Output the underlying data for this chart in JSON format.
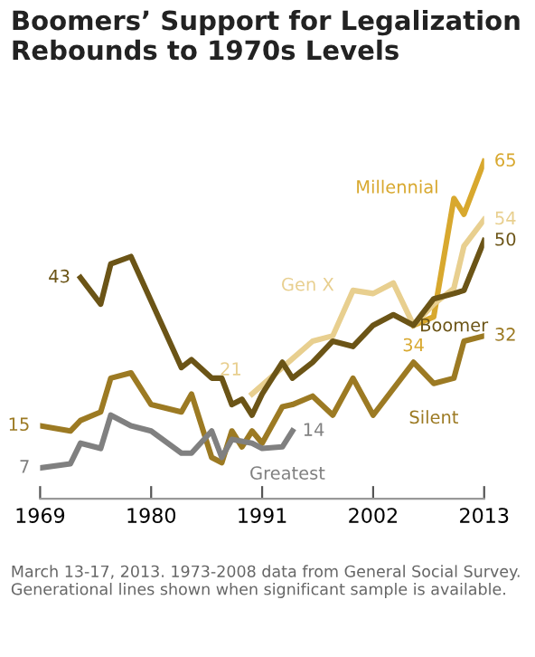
{
  "chart_data": {
    "type": "line",
    "title": "Boomers’ Support for Legalization\nRebounds to 1970s Levels",
    "xlim": [
      1969,
      2013
    ],
    "xticks": [
      1969,
      1980,
      1991,
      2002,
      2013
    ],
    "tick_labels": "x",
    "grid": false,
    "legend": false,
    "marker": "none",
    "line_style": "solid",
    "series": [
      {
        "name": "Millennial",
        "color": "#d8a82e",
        "x": [
          2006,
          2008,
          2010,
          2011,
          2013
        ],
        "values": [
          34,
          35.6,
          58,
          55,
          65
        ],
        "value_labels": [
          "34",
          null,
          null,
          null,
          "65"
        ]
      },
      {
        "name": "Gen X",
        "color": "#e8cf8f",
        "x": [
          1990,
          1993,
          1996,
          1998,
          2000,
          2002,
          2004,
          2006,
          2008,
          2010,
          2011,
          2013
        ],
        "values": [
          21,
          26,
          31,
          32,
          40.6,
          40,
          42,
          34,
          38,
          41,
          49,
          54
        ],
        "value_labels": [
          "21",
          null,
          null,
          null,
          null,
          null,
          null,
          null,
          null,
          null,
          null,
          "54"
        ]
      },
      {
        "name": "Boomer",
        "color": "#6b5416",
        "x": [
          1973,
          1975,
          1976,
          1978,
          1983,
          1984,
          1986,
          1987,
          1988,
          1989,
          1990,
          1991,
          1992,
          1993,
          1994,
          1996,
          1998,
          2000,
          2002,
          2004,
          2006,
          2008,
          2010,
          2011,
          2013
        ],
        "values": [
          43,
          38,
          45.6,
          47,
          26,
          27.5,
          24,
          24,
          19,
          20,
          17,
          21,
          24,
          27,
          24,
          27,
          31,
          30,
          34,
          36,
          34,
          39,
          40,
          40.6,
          50
        ],
        "value_labels": [
          "43",
          null,
          null,
          null,
          null,
          null,
          null,
          null,
          null,
          null,
          null,
          null,
          null,
          null,
          null,
          null,
          null,
          null,
          null,
          null,
          null,
          null,
          null,
          null,
          "50"
        ]
      },
      {
        "name": "Silent",
        "color": "#9c7a23",
        "x": [
          1969,
          1972,
          1973,
          1975,
          1976,
          1978,
          1980,
          1983,
          1984,
          1986,
          1987,
          1988,
          1989,
          1990,
          1991,
          1993,
          1994,
          1996,
          1998,
          2000,
          2002,
          2006,
          2008,
          2010,
          2011,
          2013
        ],
        "values": [
          15,
          14,
          16,
          17.6,
          24,
          25,
          19,
          17.6,
          21,
          9,
          8,
          14,
          11,
          14,
          11.7,
          18.6,
          19,
          20.6,
          17,
          24,
          17,
          27,
          23,
          24,
          31,
          32
        ],
        "value_labels": [
          "15",
          null,
          null,
          null,
          null,
          null,
          null,
          null,
          null,
          null,
          null,
          null,
          null,
          null,
          null,
          null,
          null,
          null,
          null,
          null,
          null,
          null,
          null,
          null,
          null,
          "32"
        ]
      },
      {
        "name": "Greatest",
        "color": "#808080",
        "x": [
          1969,
          1972,
          1973,
          1975,
          1976,
          1978,
          1980,
          1983,
          1984,
          1986,
          1987,
          1988,
          1990,
          1991,
          1993,
          1994
        ],
        "values": [
          7,
          7.8,
          11.7,
          10.7,
          17,
          15,
          14,
          9.8,
          9.8,
          14,
          9,
          12.4,
          11.7,
          10.7,
          11,
          14
        ],
        "value_labels": [
          "7",
          null,
          null,
          null,
          null,
          null,
          null,
          null,
          null,
          null,
          null,
          null,
          null,
          null,
          null,
          "14"
        ]
      }
    ],
    "annotations": [
      "March 13-17, 2013. 1973-2008 data from General Social Survey. Generational lines shown when significant sample is available."
    ]
  }
}
